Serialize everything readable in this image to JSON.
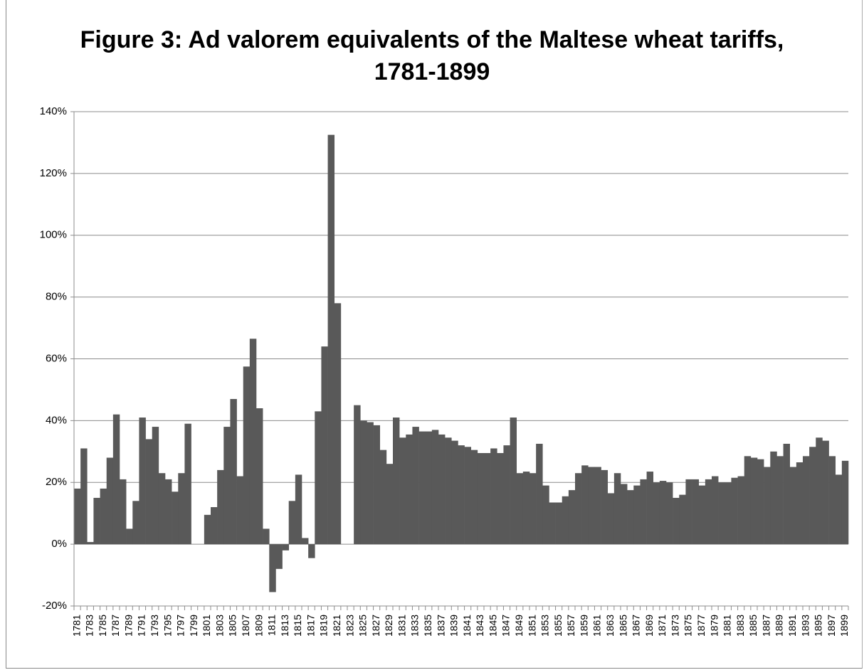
{
  "chart_data": {
    "type": "bar",
    "title": "Figure 3: Ad valorem equivalents of the Maltese wheat tariffs, 1781-1899",
    "color": "#595959",
    "grid": true,
    "ylim": [
      -20,
      140
    ],
    "yticks": [
      {
        "value": -20,
        "label": "-20%"
      },
      {
        "value": 0,
        "label": "0%"
      },
      {
        "value": 20,
        "label": "20%"
      },
      {
        "value": 40,
        "label": "40%"
      },
      {
        "value": 60,
        "label": "60%"
      },
      {
        "value": 80,
        "label": "80%"
      },
      {
        "value": 100,
        "label": "100%"
      },
      {
        "value": 120,
        "label": "120%"
      },
      {
        "value": 140,
        "label": "140%"
      }
    ],
    "categories": [
      "1781",
      null,
      "1783",
      null,
      "1785",
      null,
      "1787",
      null,
      "1789",
      null,
      "1791",
      null,
      "1793",
      null,
      "1795",
      null,
      "1797",
      null,
      "1799",
      null,
      "1801",
      null,
      "1803",
      null,
      "1805",
      null,
      "1807",
      null,
      "1809",
      null,
      "1811",
      null,
      "1813",
      null,
      "1815",
      null,
      "1817",
      null,
      "1819",
      null,
      "1821",
      null,
      "1823",
      null,
      "1825",
      null,
      "1827",
      null,
      "1829",
      null,
      "1831",
      null,
      "1833",
      null,
      "1835",
      null,
      "1837",
      null,
      "1839",
      null,
      "1841",
      null,
      "1843",
      null,
      "1845",
      null,
      "1847",
      null,
      "1849",
      null,
      "1851",
      null,
      "1853",
      null,
      "1855",
      null,
      "1857",
      null,
      "1859",
      null,
      "1861",
      null,
      "1863",
      null,
      "1865",
      null,
      "1867",
      null,
      "1869",
      null,
      "1871",
      null,
      "1873",
      null,
      "1875",
      null,
      "1877",
      null,
      "1879",
      null,
      "1881",
      null,
      "1883",
      null,
      "1885",
      null,
      "1887",
      null,
      "1889",
      null,
      "1891",
      null,
      "1893",
      null,
      "1895",
      null,
      "1897",
      null,
      "1899"
    ],
    "values": [
      18,
      31,
      0.7,
      15,
      18,
      28,
      42,
      21,
      5,
      14,
      41,
      34,
      38,
      23,
      21,
      17,
      23,
      39,
      null,
      null,
      9.5,
      12,
      24,
      38,
      47,
      22,
      57.5,
      66.5,
      44,
      5,
      -15.5,
      -8,
      -2,
      14,
      22.5,
      2,
      -4.5,
      43,
      64,
      132.5,
      78,
      null,
      null,
      45,
      40,
      39.5,
      38.5,
      30.5,
      26,
      41,
      34.5,
      35.5,
      38,
      36.5,
      36.5,
      37,
      35.5,
      34.5,
      33.5,
      32,
      31.5,
      30.5,
      29.5,
      29.5,
      31,
      29.5,
      32,
      41,
      23,
      23.5,
      23,
      32.5,
      19,
      13.5,
      13.5,
      15.5,
      17.5,
      23,
      25.5,
      25,
      25,
      24,
      16.5,
      23,
      19.5,
      17.5,
      19,
      21,
      23.5,
      20,
      20.5,
      20,
      15,
      16,
      21,
      21,
      19,
      21,
      22,
      20,
      20,
      21.5,
      22,
      28.5,
      28,
      27.5,
      25,
      30,
      28.5,
      32.5,
      25,
      26.5,
      28.5,
      31.5,
      34.5,
      33.5,
      28.5,
      22.5,
      27
    ]
  }
}
